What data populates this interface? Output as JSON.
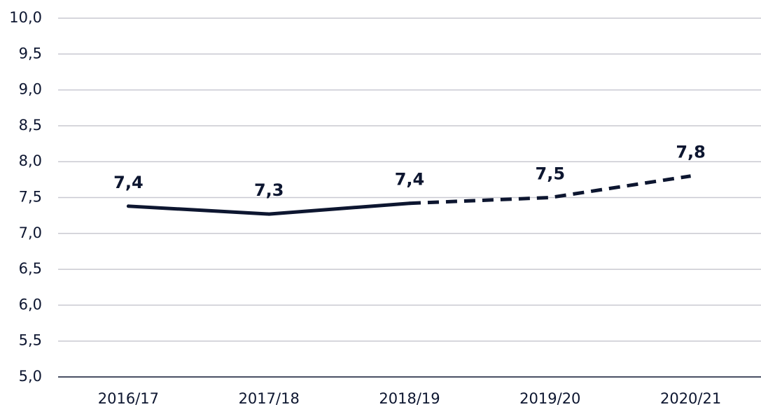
{
  "chart_data": {
    "type": "line",
    "categories": [
      "2016/17",
      "2017/18",
      "2018/19",
      "2019/20",
      "2020/21"
    ],
    "values": [
      7.38,
      7.27,
      7.42,
      7.5,
      7.8
    ],
    "value_labels": [
      "7,4",
      "7,3",
      "7,4",
      "7,5",
      "7,8"
    ],
    "color": "#0d1630",
    "dash_from_index": 2,
    "ylim": [
      5,
      10
    ],
    "yticks": [
      {
        "value": 5,
        "label": "5,0"
      },
      {
        "value": 5.5,
        "label": "5,5"
      },
      {
        "value": 6,
        "label": "6,0"
      },
      {
        "value": 6.5,
        "label": "6,5"
      },
      {
        "value": 7,
        "label": "7,0"
      },
      {
        "value": 7.5,
        "label": "7,5"
      },
      {
        "value": 8,
        "label": "8,0"
      },
      {
        "value": 8.5,
        "label": "8,5"
      },
      {
        "value": 9,
        "label": "9,0"
      },
      {
        "value": 9.5,
        "label": "9,5"
      },
      {
        "value": 10,
        "label": "10,0"
      }
    ],
    "grid": true
  }
}
